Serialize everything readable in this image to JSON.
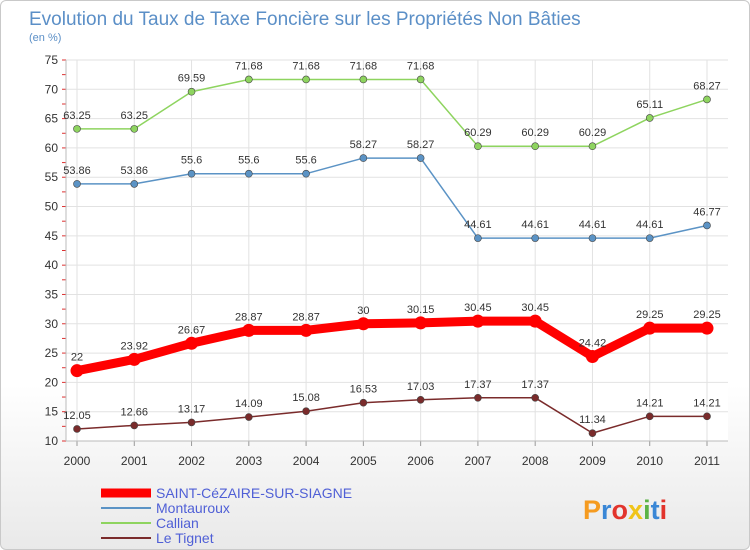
{
  "chart_data": {
    "type": "line",
    "title": "Evolution du Taux de Taxe Foncière sur les Propriétés Non Bâties",
    "subtitle": "(en %)",
    "x": [
      "2000",
      "2001",
      "2002",
      "2003",
      "2004",
      "2005",
      "2006",
      "2007",
      "2008",
      "2009",
      "2010",
      "2011"
    ],
    "ylim": [
      10,
      75
    ],
    "yticks": [
      10,
      15,
      20,
      25,
      30,
      35,
      40,
      45,
      50,
      55,
      60,
      65,
      70,
      75
    ],
    "grid": true,
    "legend_position": "bottom-left",
    "series": [
      {
        "name": "SAINT-CéZAIRE-SUR-SIAGNE",
        "color": "#ff0000",
        "bold": true,
        "values": [
          22,
          23.92,
          26.67,
          28.87,
          28.87,
          30,
          30.15,
          30.45,
          30.45,
          24.42,
          29.25,
          29.25
        ],
        "labels": [
          "22",
          "23.92",
          "26.67",
          "28.87",
          "28.87",
          "30",
          "30.15",
          "30.45",
          "30.45",
          "24.42",
          "29.25",
          "29.25"
        ]
      },
      {
        "name": "Montauroux",
        "color": "#5b93c5",
        "bold": false,
        "values": [
          53.86,
          53.86,
          55.6,
          55.6,
          55.6,
          58.27,
          58.27,
          44.61,
          44.61,
          44.61,
          44.61,
          46.77
        ],
        "labels": [
          "53.86",
          "53.86",
          "55.6",
          "55.6",
          "55.6",
          "58.27",
          "58.27",
          "44.61",
          "44.61",
          "44.61",
          "44.61",
          "46.77"
        ]
      },
      {
        "name": "Callian",
        "color": "#8ed45f",
        "bold": false,
        "values": [
          63.25,
          63.25,
          69.59,
          71.68,
          71.68,
          71.68,
          71.68,
          60.29,
          60.29,
          60.29,
          65.11,
          68.27
        ],
        "labels": [
          "63.25",
          "63.25",
          "69.59",
          "71.68",
          "71.68",
          "71.68",
          "71.68",
          "60.29",
          "60.29",
          "60.29",
          "65.11",
          "68.27"
        ]
      },
      {
        "name": "Le Tignet",
        "color": "#7a2b2b",
        "bold": false,
        "values": [
          12.05,
          12.66,
          13.17,
          14.09,
          15.08,
          16.53,
          17.03,
          17.37,
          17.37,
          11.34,
          14.21,
          14.21
        ],
        "labels": [
          "12.05",
          "12.66",
          "13.17",
          "14.09",
          "15.08",
          "16.53",
          "17.03",
          "17.37",
          "17.37",
          "11.34",
          "14.21",
          "14.21"
        ]
      }
    ]
  },
  "logo": {
    "letters": [
      "P",
      "r",
      "o",
      "x",
      "i",
      "t",
      "i"
    ],
    "colors": [
      "#f59b20",
      "#3a87d6",
      "#e2342c",
      "#f0c419",
      "#5bb346",
      "#3a87d6",
      "#e2342c"
    ]
  }
}
